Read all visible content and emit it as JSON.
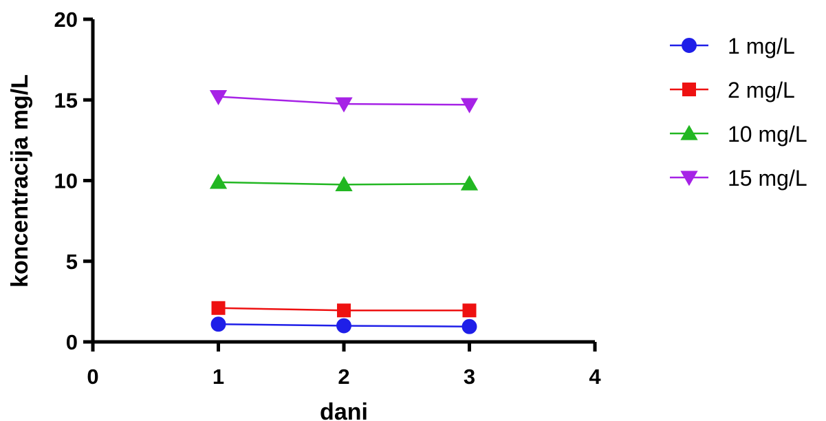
{
  "chart_data": {
    "type": "line",
    "title": "",
    "xlabel": "dani",
    "ylabel": "koncentracija mg/L",
    "xlim": [
      0,
      4
    ],
    "ylim": [
      0,
      20
    ],
    "xticks": [
      0,
      1,
      2,
      3,
      4
    ],
    "yticks": [
      0,
      5,
      10,
      15,
      20
    ],
    "grid": false,
    "legend_position": "right",
    "series": [
      {
        "name": "1 mg/L",
        "color": "#1f1fe8",
        "marker": "circle",
        "x": [
          1,
          2,
          3
        ],
        "y": [
          1.1,
          1.0,
          0.95
        ]
      },
      {
        "name": "2 mg/L",
        "color": "#ee1111",
        "marker": "square",
        "x": [
          1,
          2,
          3
        ],
        "y": [
          2.1,
          1.95,
          1.95
        ]
      },
      {
        "name": "10 mg/L",
        "color": "#22b722",
        "marker": "triangle-up",
        "x": [
          1,
          2,
          3
        ],
        "y": [
          9.9,
          9.75,
          9.8
        ]
      },
      {
        "name": "15 mg/L",
        "color": "#a622e6",
        "marker": "triangle-down",
        "x": [
          1,
          2,
          3
        ],
        "y": [
          15.2,
          14.75,
          14.7
        ]
      }
    ]
  }
}
